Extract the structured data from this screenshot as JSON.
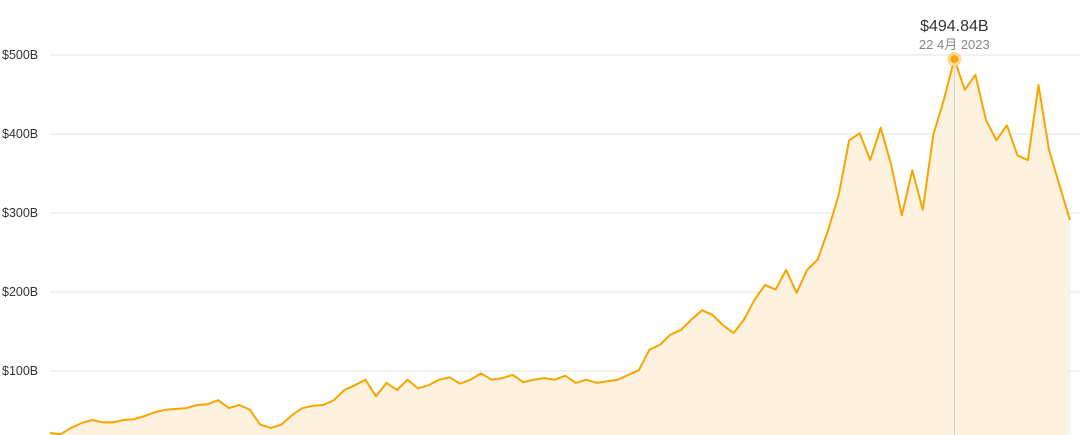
{
  "chart_data": {
    "type": "area",
    "title": "",
    "xlabel": "",
    "ylabel": "",
    "ylim": [
      0,
      520
    ],
    "y_ticks": [
      "$100B",
      "$200B",
      "$300B",
      "$400B",
      "$500B"
    ],
    "y_tick_values": [
      100,
      200,
      300,
      400,
      500
    ],
    "grid": "horizontal",
    "colors": {
      "line": "#F7A600",
      "fill": "#FDF1E0",
      "grid": "#E3E3E3",
      "hover_line": "#D0D0D0"
    },
    "series": [
      {
        "unit": "billion USD",
        "values": [
          21.5,
          20,
          28,
          34,
          38,
          35,
          35,
          38,
          39,
          43,
          48,
          51,
          52,
          53,
          57,
          58,
          63,
          53,
          57,
          51,
          32,
          28,
          32,
          44,
          53,
          56,
          57,
          63,
          76,
          82,
          89,
          68,
          85,
          76,
          89,
          78,
          82,
          89,
          92,
          84,
          89,
          97,
          89,
          91,
          95,
          86,
          89,
          91,
          89,
          94,
          85,
          89,
          85,
          87,
          89,
          95,
          101,
          127,
          133,
          146,
          152,
          165,
          177,
          171,
          158,
          148,
          165,
          190,
          209,
          203,
          228,
          199,
          228,
          241,
          278,
          323,
          392,
          401,
          367,
          408,
          361,
          297,
          354,
          304,
          399,
          443,
          494.84,
          456,
          475,
          418,
          392,
          411,
          373,
          367,
          462,
          380,
          335,
          291
        ]
      }
    ],
    "highlight": {
      "index": 86,
      "value_label": "$494.84B",
      "date_label": "22 4月 2023"
    }
  }
}
